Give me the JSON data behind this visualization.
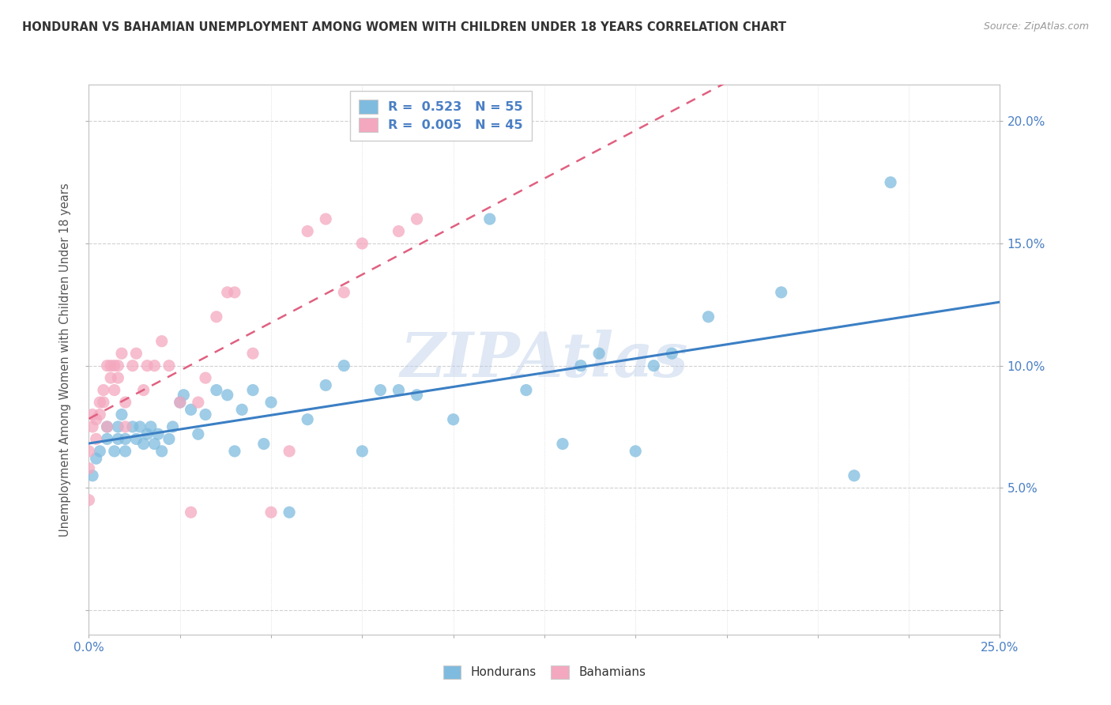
{
  "title": "HONDURAN VS BAHAMIAN UNEMPLOYMENT AMONG WOMEN WITH CHILDREN UNDER 18 YEARS CORRELATION CHART",
  "source": "Source: ZipAtlas.com",
  "ylabel": "Unemployment Among Women with Children Under 18 years",
  "xlim": [
    0.0,
    0.25
  ],
  "ylim": [
    -0.01,
    0.215
  ],
  "color_hondurans": "#7fbbde",
  "color_bahamians": "#f4a8bf",
  "line_color_hondurans": "#3b7fc4",
  "line_color_bahamians": "#e06080",
  "background_color": "#ffffff",
  "watermark": "ZIPAtlas",
  "hondurans_x": [
    0.001,
    0.002,
    0.003,
    0.005,
    0.005,
    0.007,
    0.008,
    0.008,
    0.009,
    0.01,
    0.01,
    0.012,
    0.013,
    0.014,
    0.015,
    0.016,
    0.017,
    0.018,
    0.019,
    0.02,
    0.022,
    0.023,
    0.025,
    0.026,
    0.028,
    0.03,
    0.032,
    0.035,
    0.038,
    0.04,
    0.042,
    0.045,
    0.048,
    0.05,
    0.055,
    0.06,
    0.065,
    0.07,
    0.075,
    0.08,
    0.085,
    0.09,
    0.1,
    0.11,
    0.12,
    0.13,
    0.135,
    0.14,
    0.15,
    0.155,
    0.16,
    0.17,
    0.19,
    0.21,
    0.22
  ],
  "hondurans_y": [
    0.055,
    0.062,
    0.065,
    0.07,
    0.075,
    0.065,
    0.07,
    0.075,
    0.08,
    0.065,
    0.07,
    0.075,
    0.07,
    0.075,
    0.068,
    0.072,
    0.075,
    0.068,
    0.072,
    0.065,
    0.07,
    0.075,
    0.085,
    0.088,
    0.082,
    0.072,
    0.08,
    0.09,
    0.088,
    0.065,
    0.082,
    0.09,
    0.068,
    0.085,
    0.04,
    0.078,
    0.092,
    0.1,
    0.065,
    0.09,
    0.09,
    0.088,
    0.078,
    0.16,
    0.09,
    0.068,
    0.1,
    0.105,
    0.065,
    0.1,
    0.105,
    0.12,
    0.13,
    0.055,
    0.175
  ],
  "bahamians_x": [
    0.0,
    0.0,
    0.0,
    0.001,
    0.001,
    0.002,
    0.002,
    0.003,
    0.003,
    0.004,
    0.004,
    0.005,
    0.005,
    0.006,
    0.006,
    0.007,
    0.007,
    0.008,
    0.008,
    0.009,
    0.01,
    0.01,
    0.012,
    0.013,
    0.015,
    0.016,
    0.018,
    0.02,
    0.022,
    0.025,
    0.028,
    0.03,
    0.032,
    0.035,
    0.038,
    0.04,
    0.045,
    0.05,
    0.055,
    0.06,
    0.065,
    0.07,
    0.075,
    0.085,
    0.09
  ],
  "bahamians_y": [
    0.045,
    0.058,
    0.065,
    0.075,
    0.08,
    0.07,
    0.078,
    0.08,
    0.085,
    0.085,
    0.09,
    0.075,
    0.1,
    0.095,
    0.1,
    0.09,
    0.1,
    0.095,
    0.1,
    0.105,
    0.075,
    0.085,
    0.1,
    0.105,
    0.09,
    0.1,
    0.1,
    0.11,
    0.1,
    0.085,
    0.04,
    0.085,
    0.095,
    0.12,
    0.13,
    0.13,
    0.105,
    0.04,
    0.065,
    0.155,
    0.16,
    0.13,
    0.15,
    0.155,
    0.16
  ]
}
